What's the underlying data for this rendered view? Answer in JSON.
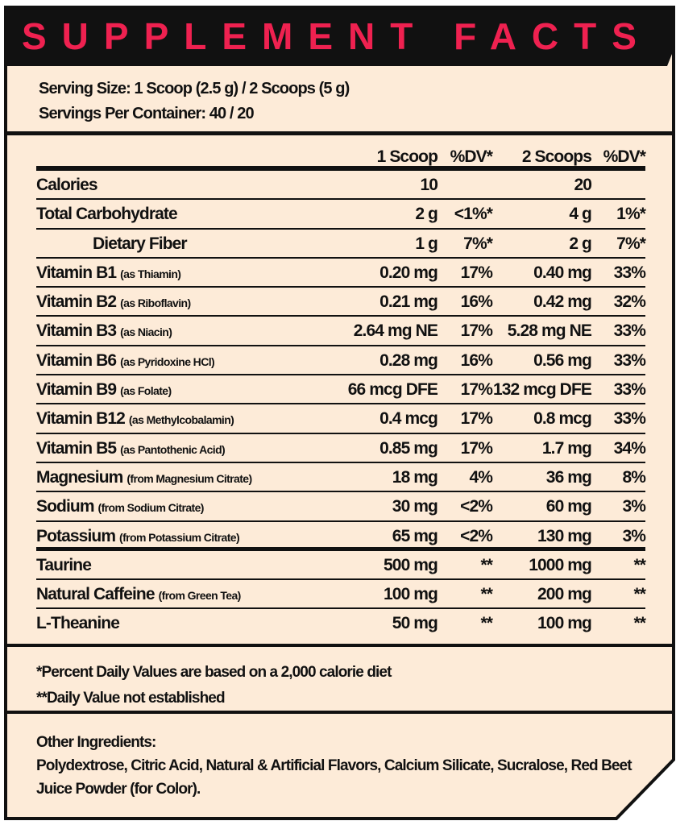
{
  "colors": {
    "title": "#ef2150",
    "panel": "#fdebd8",
    "border": "#111111"
  },
  "title": "SUPPLEMENT FACTS",
  "serving": {
    "size": "Serving Size: 1 Scoop (2.5 g) / 2 Scoops (5 g)",
    "per_container": "Servings Per Container: 40 / 20"
  },
  "columns": [
    "1 Scoop",
    "%DV*",
    "2 Scoops",
    "%DV*"
  ],
  "rows": [
    {
      "name": "Calories",
      "note": "",
      "v1": "10",
      "dv1": "",
      "v2": "20",
      "dv2": ""
    },
    {
      "name": "Total Carbohydrate",
      "note": "",
      "v1": "2 g",
      "dv1": "<1%*",
      "v2": "4 g",
      "dv2": "1%*"
    },
    {
      "name": "Dietary Fiber",
      "note": "",
      "v1": "1 g",
      "dv1": "7%*",
      "v2": "2 g",
      "dv2": "7%*"
    },
    {
      "name": "Vitamin B1",
      "note": "(as Thiamin)",
      "v1": "0.20 mg",
      "dv1": "17%",
      "v2": "0.40 mg",
      "dv2": "33%"
    },
    {
      "name": "Vitamin B2",
      "note": "(as Riboflavin)",
      "v1": "0.21 mg",
      "dv1": "16%",
      "v2": "0.42 mg",
      "dv2": "32%"
    },
    {
      "name": "Vitamin B3",
      "note": "(as Niacin)",
      "v1": "2.64 mg NE",
      "dv1": "17%",
      "v2": "5.28 mg NE",
      "dv2": "33%"
    },
    {
      "name": "Vitamin B6",
      "note": "(as Pyridoxine HCl)",
      "v1": "0.28 mg",
      "dv1": "16%",
      "v2": "0.56 mg",
      "dv2": "33%"
    },
    {
      "name": "Vitamin B9",
      "note": "(as Folate)",
      "v1": "66 mcg DFE",
      "dv1": "17%",
      "v2": "132 mcg DFE",
      "dv2": "33%"
    },
    {
      "name": "Vitamin B12",
      "note": "(as Methylcobalamin)",
      "v1": "0.4 mcg",
      "dv1": "17%",
      "v2": "0.8 mcg",
      "dv2": "33%"
    },
    {
      "name": "Vitamin B5",
      "note": "(as Pantothenic Acid)",
      "v1": "0.85 mg",
      "dv1": "17%",
      "v2": "1.7 mg",
      "dv2": "34%"
    },
    {
      "name": "Magnesium",
      "note": "(from Magnesium Citrate)",
      "v1": "18 mg",
      "dv1": "4%",
      "v2": "36 mg",
      "dv2": "8%"
    },
    {
      "name": "Sodium",
      "note": "(from Sodium Citrate)",
      "v1": "30 mg",
      "dv1": "<2%",
      "v2": "60 mg",
      "dv2": "3%"
    },
    {
      "name": "Potassium",
      "note": "(from Potassium Citrate)",
      "v1": "65 mg",
      "dv1": "<2%",
      "v2": "130 mg",
      "dv2": "3%"
    },
    {
      "name": "Taurine",
      "note": "",
      "v1": "500 mg",
      "dv1": "**",
      "v2": "1000 mg",
      "dv2": "**"
    },
    {
      "name": "Natural Caffeine",
      "note": "(from Green Tea)",
      "v1": "100 mg",
      "dv1": "**",
      "v2": "200 mg",
      "dv2": "**"
    },
    {
      "name": "L-Theanine",
      "note": "",
      "v1": "50 mg",
      "dv1": "**",
      "v2": "100 mg",
      "dv2": "**"
    }
  ],
  "footnotes": [
    "*Percent Daily Values are based on a 2,000 calorie diet",
    "**Daily Value not established"
  ],
  "other_ingredients": {
    "heading": "Other Ingredients:",
    "text": "Polydextrose, Citric Acid, Natural & Artificial Flavors, Calcium Silicate, Sucralose, Red Beet Juice Powder (for Color)."
  }
}
